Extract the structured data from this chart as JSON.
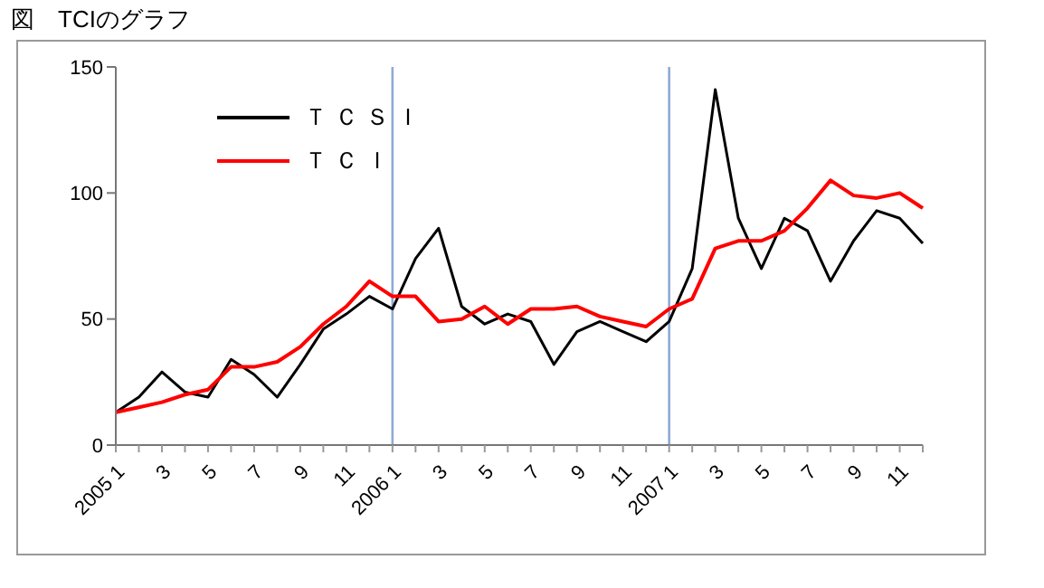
{
  "chart_data": {
    "type": "line",
    "title": "図　TCIのグラフ",
    "categories": [
      "2005 1",
      null,
      "3",
      null,
      "5",
      null,
      "7",
      null,
      "9",
      null,
      "11",
      null,
      "2006 1",
      null,
      "3",
      null,
      "5",
      null,
      "7",
      null,
      "9",
      null,
      "11",
      null,
      "2007 1",
      null,
      "3",
      null,
      "5",
      null,
      "7",
      null,
      "9",
      null,
      "11",
      null
    ],
    "series": [
      {
        "name": "ＴＣＳＩ",
        "color": "#000000",
        "values": [
          13,
          19,
          29,
          21,
          19,
          34,
          28,
          19,
          32,
          46,
          52,
          59,
          54,
          74,
          86,
          55,
          48,
          52,
          49,
          32,
          45,
          49,
          45,
          41,
          49,
          70,
          141,
          90,
          70,
          90,
          85,
          65,
          81,
          93,
          90,
          80
        ]
      },
      {
        "name": "ＴＣＩ",
        "color": "#ff0000",
        "values": [
          13,
          15,
          17,
          20,
          22,
          31,
          31,
          33,
          39,
          48,
          55,
          65,
          59,
          59,
          49,
          50,
          55,
          48,
          54,
          54,
          55,
          51,
          49,
          47,
          54,
          58,
          78,
          81,
          81,
          85,
          94,
          105,
          99,
          98,
          100,
          94
        ]
      }
    ],
    "ylim": [
      0,
      150
    ],
    "yticks": [
      0,
      50,
      100,
      150
    ],
    "grid": false,
    "legend": "top left",
    "marker": "none",
    "line_style": "solid",
    "ref_lines": [
      {
        "axis": "x",
        "value": "2006 1",
        "color": "#8eaad6"
      },
      {
        "axis": "x",
        "value": "2007 1",
        "color": "#8eaad6"
      }
    ]
  }
}
